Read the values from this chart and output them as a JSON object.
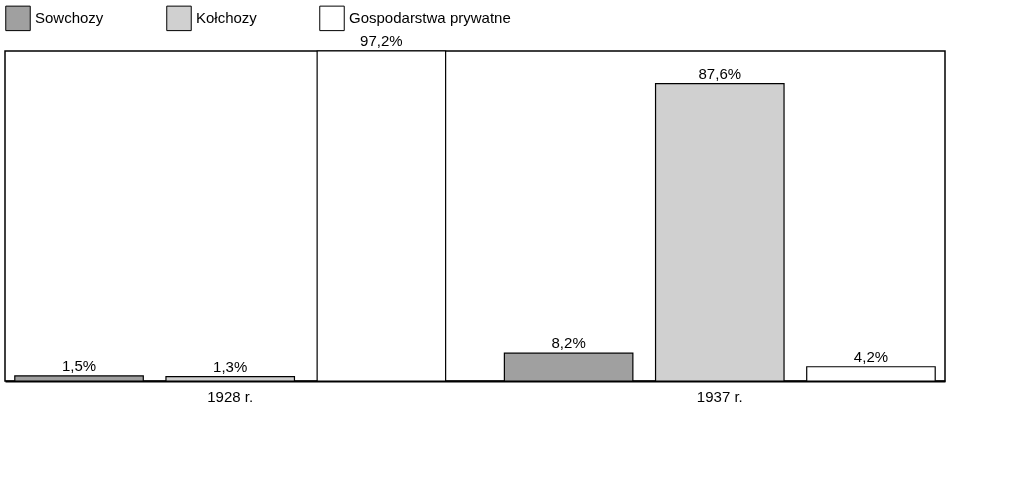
{
  "chart_data": {
    "type": "bar",
    "categories": [
      "1928 r.",
      "1937 r."
    ],
    "series": [
      {
        "name": "Sowchozy",
        "color": "#a0a0a0",
        "values": [
          1.5,
          8.2
        ],
        "value_labels": [
          "1,5%",
          "8,2%"
        ]
      },
      {
        "name": "Kołchozy",
        "color": "#d0d0d0",
        "values": [
          1.3,
          87.6
        ],
        "value_labels": [
          "1,3%",
          "87,6%"
        ]
      },
      {
        "name": "Gospodarstwa prywatne",
        "color": "#ffffff",
        "values": [
          97.2,
          4.2
        ],
        "value_labels": [
          "97,2%",
          "4,2%"
        ]
      }
    ],
    "legend": "top",
    "grid": false
  }
}
